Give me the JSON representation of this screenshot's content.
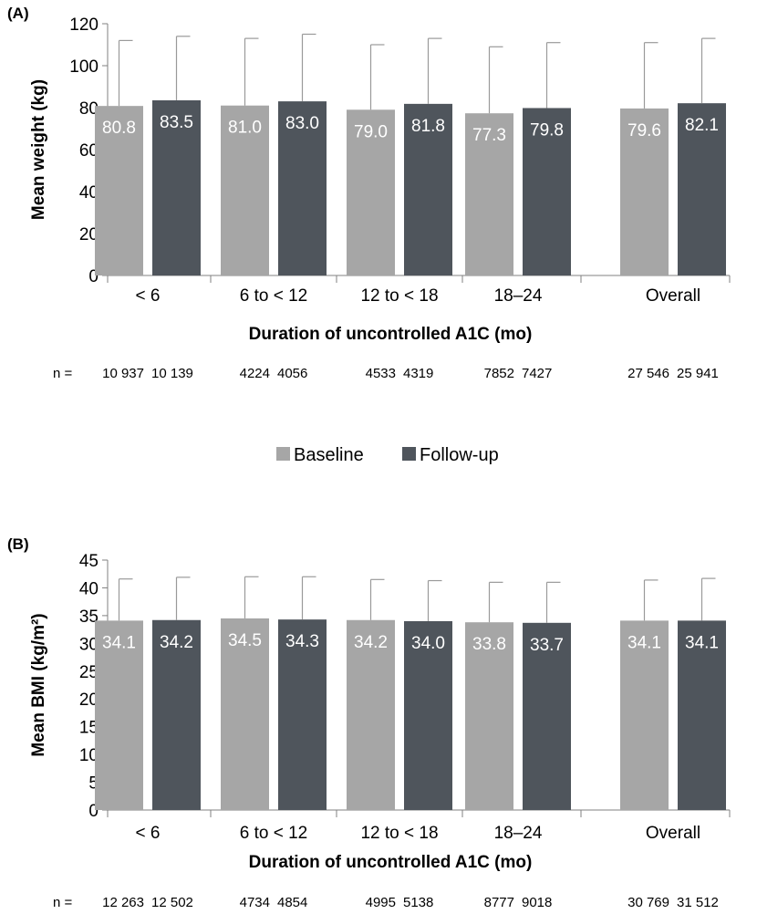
{
  "legend": {
    "items": [
      {
        "label": "Baseline",
        "color": "#a6a6a6"
      },
      {
        "label": "Follow-up",
        "color": "#4f555c"
      }
    ]
  },
  "n_prefix": "n =",
  "chart_data": [
    {
      "type": "bar",
      "panel_label": "(A)",
      "title": "",
      "ylabel": "Mean weight (kg)",
      "xlabel": "Duration of uncontrolled A1C (mo)",
      "ylim": [
        0,
        120
      ],
      "yticks": [
        0,
        20,
        40,
        60,
        80,
        100,
        120
      ],
      "grid": false,
      "categories": [
        "< 6",
        "6 to < 12",
        "12 to < 18",
        "18–24",
        "Overall"
      ],
      "series": [
        {
          "name": "Baseline",
          "values": [
            80.8,
            81.0,
            79.0,
            77.3,
            79.6
          ],
          "labels": [
            "80.8",
            "81.0",
            "79.0",
            "77.3",
            "79.6"
          ],
          "error_upper": [
            112,
            113,
            110,
            109,
            111
          ]
        },
        {
          "name": "Follow-up",
          "values": [
            83.5,
            83.0,
            81.8,
            79.8,
            82.1
          ],
          "labels": [
            "83.5",
            "83.0",
            "81.8",
            "79.8",
            "82.1"
          ],
          "error_upper": [
            114,
            115,
            113,
            111,
            113
          ]
        }
      ],
      "n": [
        [
          "10 937",
          "10 139"
        ],
        [
          "4224",
          "4056"
        ],
        [
          "4533",
          "4319"
        ],
        [
          "7852",
          "7427"
        ],
        [
          "27 546",
          "25 941"
        ]
      ]
    },
    {
      "type": "bar",
      "panel_label": "(B)",
      "title": "",
      "ylabel": "Mean BMI (kg/m²)",
      "xlabel": "Duration of uncontrolled A1C (mo)",
      "ylim": [
        0,
        45
      ],
      "yticks": [
        0,
        5,
        10,
        15,
        20,
        25,
        30,
        35,
        40,
        45
      ],
      "grid": false,
      "categories": [
        "< 6",
        "6 to < 12",
        "12 to < 18",
        "18–24",
        "Overall"
      ],
      "series": [
        {
          "name": "Baseline",
          "values": [
            34.1,
            34.5,
            34.2,
            33.8,
            34.1
          ],
          "labels": [
            "34.1",
            "34.5",
            "34.2",
            "33.8",
            "34.1"
          ],
          "error_upper": [
            41.6,
            42.0,
            41.5,
            41.0,
            41.4
          ]
        },
        {
          "name": "Follow-up",
          "values": [
            34.2,
            34.3,
            34.0,
            33.7,
            34.1
          ],
          "labels": [
            "34.2",
            "34.3",
            "34.0",
            "33.7",
            "34.1"
          ],
          "error_upper": [
            41.9,
            42.0,
            41.3,
            41.0,
            41.7
          ]
        }
      ],
      "n": [
        [
          "12 263",
          "12 502"
        ],
        [
          "4734",
          "4854"
        ],
        [
          "4995",
          "5138"
        ],
        [
          "8777",
          "9018"
        ],
        [
          "30 769",
          "31 512"
        ]
      ]
    }
  ]
}
